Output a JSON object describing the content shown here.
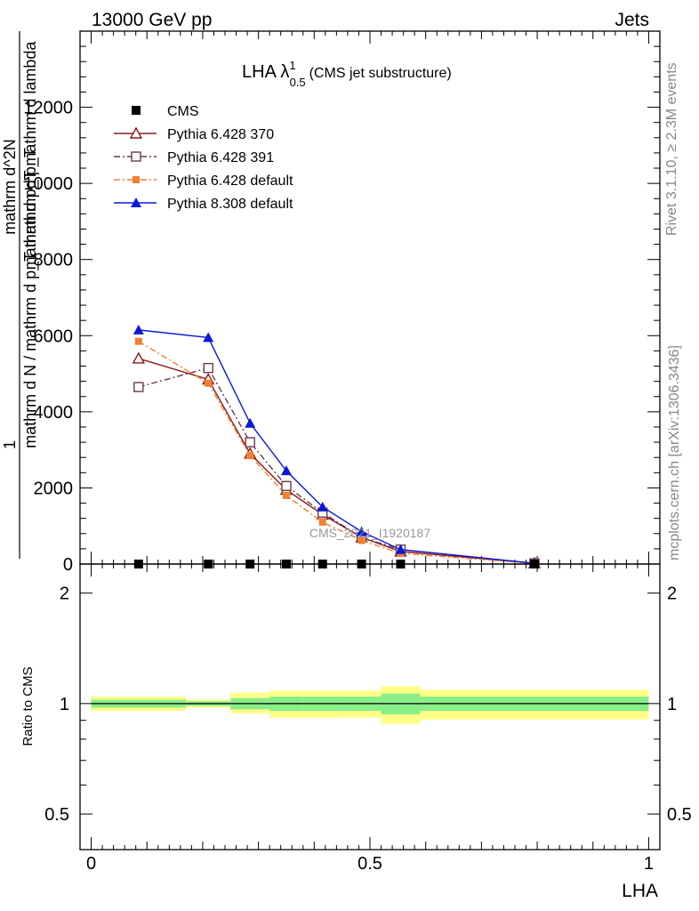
{
  "header": {
    "left": "13000 GeV pp",
    "right": "Jets"
  },
  "side": {
    "rivet": "Rivet 3.1.10, ≥ 2.3M events",
    "mcplots": "mcplots.cern.ch [arXiv:1306.3436]"
  },
  "watermark": "CMS_2021_I1920187",
  "colors": {
    "cms": "#000000",
    "p370": "#8b1a1a",
    "p391": "#6b3b4a",
    "p6def": "#f28030",
    "p8def": "#0b1ad6",
    "band_outer": "#ffff88",
    "band_inner": "#88ee88"
  },
  "chart_data": [
    {
      "type": "line",
      "title_main": "LHA λ",
      "title_sup": "1",
      "title_sub": "0.5",
      "title_note": "(CMS jet substructure)",
      "ylabel_num": "1",
      "ylabel_den": "mathrm d N / mathrm d p_T mathrm d p_T",
      "ylabel_num2": "mathrm d^2N",
      "ylabel_den2": "mathrm d p_T mathrm d lambda",
      "xlim": [
        -0.02,
        1.02
      ],
      "ylim": [
        0,
        14000
      ],
      "yticks": [
        0,
        2000,
        4000,
        6000,
        8000,
        10000,
        12000
      ],
      "ytick_labels": [
        "0",
        "2000",
        "4000",
        "6000",
        "8000",
        "10000",
        "12000"
      ],
      "series": [
        {
          "key": "cms",
          "name": "CMS",
          "marker": "square-filled",
          "dash": "none",
          "x": [
            0.085,
            0.21,
            0.285,
            0.35,
            0.415,
            0.485,
            0.555,
            0.795
          ],
          "values": [
            0,
            0,
            0,
            0,
            0,
            0,
            0,
            0
          ]
        },
        {
          "key": "p370",
          "name": "Pythia 6.428 370",
          "marker": "triangle-open",
          "dash": "solid",
          "x": [
            0.085,
            0.21,
            0.285,
            0.35,
            0.415,
            0.485,
            0.555,
            0.795
          ],
          "values": [
            5400,
            4850,
            2900,
            1950,
            1300,
            700,
            330,
            20
          ]
        },
        {
          "key": "p391",
          "name": "Pythia 6.428 391",
          "marker": "square-open",
          "dash": "dashdot",
          "x": [
            0.085,
            0.21,
            0.285,
            0.35,
            0.415,
            0.485,
            0.555,
            0.795
          ],
          "values": [
            4650,
            5150,
            3200,
            2050,
            1350,
            700,
            380,
            20
          ]
        },
        {
          "key": "p6def",
          "name": "Pythia 6.428 default",
          "marker": "square-filled-small",
          "dash": "dashdot",
          "x": [
            0.085,
            0.21,
            0.285,
            0.35,
            0.415,
            0.485,
            0.555,
            0.795
          ],
          "values": [
            5850,
            4750,
            2850,
            1800,
            1100,
            620,
            280,
            15
          ]
        },
        {
          "key": "p8def",
          "name": "Pythia 8.308 default",
          "marker": "triangle-filled",
          "dash": "solid",
          "x": [
            0.085,
            0.21,
            0.285,
            0.35,
            0.415,
            0.485,
            0.555,
            0.795
          ],
          "values": [
            6150,
            5950,
            3700,
            2450,
            1500,
            850,
            380,
            20
          ]
        }
      ]
    },
    {
      "type": "area",
      "xlabel": "LHA",
      "ylabel": "Ratio to CMS",
      "log_y": true,
      "xlim": [
        -0.02,
        1.02
      ],
      "ylim": [
        0.4,
        2.4
      ],
      "yticks": [
        0.5,
        1,
        2
      ],
      "ytick_labels": [
        "0.5",
        "1",
        "2"
      ],
      "xticks": [
        0,
        0.5,
        1
      ],
      "xtick_labels": [
        "0",
        "0.5",
        "1"
      ],
      "bins": [
        0,
        0.17,
        0.25,
        0.32,
        0.38,
        0.45,
        0.52,
        0.59,
        1.0
      ],
      "outer_lo": [
        0.955,
        0.975,
        0.94,
        0.915,
        0.915,
        0.915,
        0.88,
        0.905
      ],
      "outer_hi": [
        1.045,
        1.025,
        1.07,
        1.085,
        1.085,
        1.085,
        1.115,
        1.09
      ],
      "inner_lo": [
        0.975,
        0.985,
        0.965,
        0.955,
        0.955,
        0.955,
        0.935,
        0.955
      ],
      "inner_hi": [
        1.025,
        1.015,
        1.035,
        1.045,
        1.045,
        1.045,
        1.065,
        1.045
      ],
      "reference": 1
    }
  ]
}
